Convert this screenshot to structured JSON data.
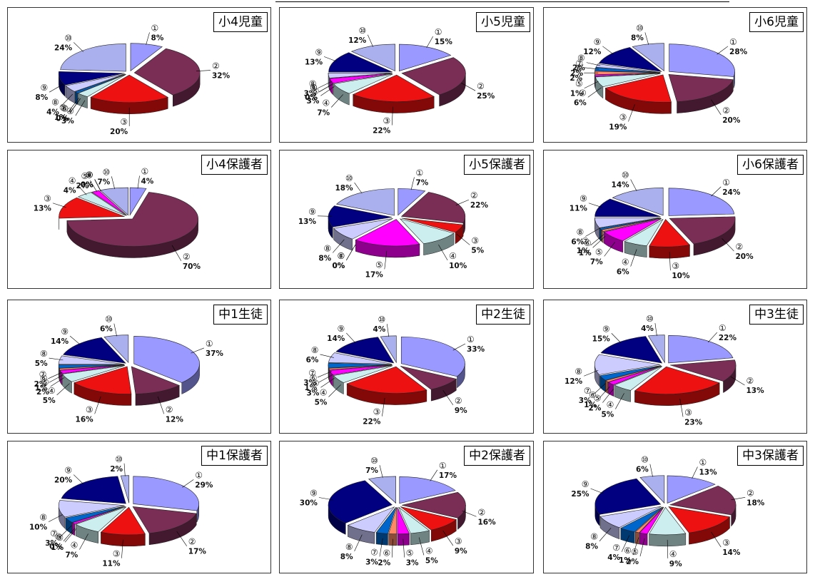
{
  "colors": [
    "#9999ff",
    "#7a2e55",
    "#ee1111",
    "#cceeee",
    "#ff00ff",
    "#ff8866",
    "#0066cc",
    "#ccccff",
    "#000080",
    "#aab0ee"
  ],
  "chart_data": [
    {
      "type": "pie",
      "title": "小4児童",
      "categories": [
        "①",
        "②",
        "③",
        "④",
        "⑤",
        "⑥",
        "⑦",
        "⑧",
        "⑨",
        "⑩"
      ],
      "values": [
        8,
        32,
        20,
        3,
        0,
        0,
        1,
        4,
        8,
        24
      ],
      "labels": [
        "8%",
        "32%",
        "20%",
        "3%",
        "0%",
        "0%",
        "1%",
        "4%",
        "8%",
        "24%"
      ]
    },
    {
      "type": "pie",
      "title": "小5児童",
      "categories": [
        "①",
        "②",
        "③",
        "④",
        "⑤",
        "⑥",
        "⑦",
        "⑧",
        "⑨",
        "⑩"
      ],
      "values": [
        15,
        25,
        22,
        7,
        3,
        0,
        0,
        3,
        13,
        12
      ],
      "labels": [
        "15%",
        "25%",
        "22%",
        "7%",
        "3%",
        "0%",
        "0%",
        "3%",
        "13%",
        "12%"
      ]
    },
    {
      "type": "pie",
      "title": "小6児童",
      "categories": [
        "①",
        "②",
        "③",
        "④",
        "⑤",
        "⑥",
        "⑦",
        "⑧",
        "⑨",
        "⑩"
      ],
      "values": [
        28,
        20,
        19,
        6,
        1,
        2,
        2,
        2,
        12,
        8
      ],
      "labels": [
        "28%",
        "20%",
        "19%",
        "6%",
        "1%",
        "2%",
        "2%",
        "2%",
        "12%",
        "8%"
      ]
    },
    {
      "type": "pie",
      "title": "小4保護者",
      "categories": [
        "①",
        "②",
        "③",
        "④",
        "⑤",
        "⑥",
        "⑦",
        "⑧",
        "⑨",
        "⑩"
      ],
      "values": [
        4,
        70,
        13,
        4,
        2,
        0,
        0,
        0,
        0,
        7
      ],
      "labels": [
        "4%",
        "70%",
        "13%",
        "4%",
        "2%",
        "0%",
        "0%",
        "0%",
        "0%",
        "7%"
      ]
    },
    {
      "type": "pie",
      "title": "小5保護者",
      "categories": [
        "①",
        "②",
        "③",
        "④",
        "⑤",
        "⑥",
        "⑦",
        "⑧",
        "⑨",
        "⑩"
      ],
      "values": [
        7,
        22,
        5,
        10,
        17,
        0,
        0,
        8,
        13,
        18
      ],
      "labels": [
        "7%",
        "22%",
        "5%",
        "10%",
        "17%",
        "0%",
        "0%",
        "8%",
        "13%",
        "18%"
      ]
    },
    {
      "type": "pie",
      "title": "小6保護者",
      "categories": [
        "①",
        "②",
        "③",
        "④",
        "⑤",
        "⑥",
        "⑦",
        "⑧",
        "⑨",
        "⑩"
      ],
      "values": [
        24,
        20,
        10,
        6,
        7,
        1,
        1,
        6,
        11,
        14
      ],
      "labels": [
        "24%",
        "20%",
        "10%",
        "6%",
        "7%",
        "1%",
        "1%",
        "6%",
        "11%",
        "14%"
      ]
    },
    {
      "type": "pie",
      "title": "中1生徒",
      "categories": [
        "①",
        "②",
        "③",
        "④",
        "⑤",
        "⑥",
        "⑦",
        "⑧",
        "⑨",
        "⑩"
      ],
      "values": [
        37,
        12,
        16,
        5,
        2,
        1,
        2,
        5,
        14,
        6
      ],
      "labels": [
        "37%",
        "12%",
        "16%",
        "5%",
        "2%",
        "1%",
        "2%",
        "5%",
        "14%",
        "6%"
      ]
    },
    {
      "type": "pie",
      "title": "中2生徒",
      "categories": [
        "①",
        "②",
        "③",
        "④",
        "⑤",
        "⑥",
        "⑦",
        "⑧",
        "⑨",
        "⑩"
      ],
      "values": [
        33,
        9,
        22,
        5,
        3,
        1,
        3,
        6,
        14,
        4
      ],
      "labels": [
        "33%",
        "9%",
        "22%",
        "5%",
        "3%",
        "1%",
        "3%",
        "6%",
        "14%",
        "4%"
      ]
    },
    {
      "type": "pie",
      "title": "中3生徒",
      "categories": [
        "①",
        "②",
        "③",
        "④",
        "⑤",
        "⑥",
        "⑦",
        "⑧",
        "⑨",
        "⑩"
      ],
      "values": [
        22,
        13,
        23,
        5,
        2,
        1,
        3,
        12,
        15,
        4
      ],
      "labels": [
        "22%",
        "13%",
        "23%",
        "5%",
        "2%",
        "1%",
        "3%",
        "12%",
        "15%",
        "4%"
      ]
    },
    {
      "type": "pie",
      "title": "中1保護者",
      "categories": [
        "①",
        "②",
        "③",
        "④",
        "⑤",
        "⑥",
        "⑦",
        "⑧",
        "⑨",
        "⑩"
      ],
      "values": [
        29,
        17,
        11,
        7,
        1,
        0,
        3,
        10,
        20,
        2
      ],
      "labels": [
        "29%",
        "17%",
        "11%",
        "7%",
        "1%",
        "0%",
        "3%",
        "10%",
        "20%",
        "2%"
      ]
    },
    {
      "type": "pie",
      "title": "中2保護者",
      "categories": [
        "①",
        "②",
        "③",
        "④",
        "⑤",
        "⑥",
        "⑦",
        "⑧",
        "⑨",
        "⑩"
      ],
      "values": [
        17,
        16,
        9,
        5,
        3,
        2,
        3,
        8,
        30,
        7
      ],
      "labels": [
        "17%",
        "16%",
        "9%",
        "5%",
        "3%",
        "2%",
        "3%",
        "8%",
        "30%",
        "7%"
      ]
    },
    {
      "type": "pie",
      "title": "中3保護者",
      "categories": [
        "①",
        "②",
        "③",
        "④",
        "⑤",
        "⑥",
        "⑦",
        "⑧",
        "⑨",
        "⑩"
      ],
      "values": [
        13,
        18,
        14,
        9,
        2,
        1,
        4,
        8,
        25,
        6
      ],
      "labels": [
        "13%",
        "18%",
        "14%",
        "9%",
        "2%",
        "1%",
        "4%",
        "8%",
        "25%",
        "6%"
      ]
    }
  ]
}
